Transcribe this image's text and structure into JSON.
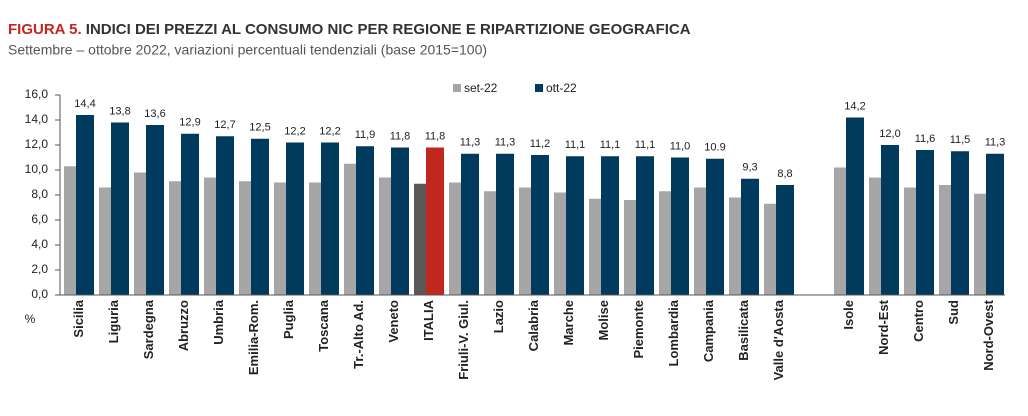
{
  "chart_data": {
    "type": "bar",
    "title_prefix": "FIGURA 5.",
    "title": "INDICI DEI PREZZI AL CONSUMO NIC PER REGIONE E RIPARTIZIONE GEOGRAFICA",
    "subtitle": "Settembre – ottobre 2022, variazioni percentuali tendenziali (base 2015=100)",
    "y_unit": "%",
    "categories": [
      "Sicilia",
      "Liguria",
      "Sardegna",
      "Abruzzo",
      "Umbria",
      "Emilia-Rom.",
      "Puglia",
      "Toscana",
      "Tr.-Alto Ad.",
      "Veneto",
      "ITALIA",
      "Friuli-V. Giul.",
      "Lazio",
      "Calabria",
      "Marche",
      "Molise",
      "Piemonte",
      "Lombardia",
      "Campania",
      "Basilicata",
      "Valle d'Aosta",
      null,
      "Isole",
      "Nord-Est",
      "Centro",
      "Sud",
      "Nord-Ovest"
    ],
    "highlight_category": "ITALIA",
    "series": [
      {
        "name": "set-22",
        "color": "#a6a6a6",
        "highlight_color": "#595959",
        "values": [
          10.3,
          8.6,
          9.8,
          9.1,
          9.4,
          9.1,
          9.0,
          9.0,
          10.5,
          9.4,
          8.9,
          9.0,
          8.3,
          8.6,
          8.2,
          7.7,
          7.6,
          8.3,
          8.6,
          7.8,
          7.3,
          null,
          10.2,
          9.4,
          8.6,
          8.8,
          8.1
        ]
      },
      {
        "name": "ott-22",
        "color": "#003a5d",
        "highlight_color": "#c0281e",
        "values": [
          14.4,
          13.8,
          13.6,
          12.9,
          12.7,
          12.5,
          12.2,
          12.2,
          11.9,
          11.8,
          11.8,
          11.3,
          11.3,
          11.2,
          11.1,
          11.1,
          11.1,
          11.0,
          10.9,
          9.3,
          8.8,
          null,
          14.2,
          12.0,
          11.6,
          11.5,
          11.3
        ],
        "value_labels": [
          "14,4",
          "13,8",
          "13,6",
          "12,9",
          "12,7",
          "12,5",
          "12,2",
          "12,2",
          "11,9",
          "11,8",
          "11,8",
          "11,3",
          "11,3",
          "11,2",
          "11,1",
          "11,1",
          "11,1",
          "11,0",
          "10.9",
          "9,3",
          "8,8",
          null,
          "14,2",
          "12,0",
          "11,6",
          "11,5",
          "11,3"
        ]
      }
    ],
    "ylim": [
      0,
      16
    ],
    "yticks": [
      {
        "value": 0,
        "label": "0,0"
      },
      {
        "value": 2,
        "label": "2,0"
      },
      {
        "value": 4,
        "label": "4,0"
      },
      {
        "value": 6,
        "label": "6,0"
      },
      {
        "value": 8,
        "label": "8,0"
      },
      {
        "value": 10,
        "label": "10,0"
      },
      {
        "value": 12,
        "label": "12,0"
      },
      {
        "value": 14,
        "label": "14,0"
      },
      {
        "value": 16,
        "label": "16,0"
      }
    ],
    "grid": false,
    "legend": "top"
  }
}
